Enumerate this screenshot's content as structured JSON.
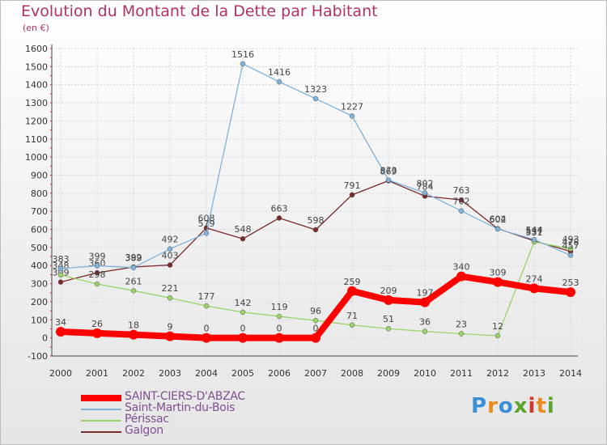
{
  "title": "Evolution du Montant de la Dette par Habitant",
  "subtitle": "(en €)",
  "logo": "Proxiti",
  "chart_data": {
    "type": "line",
    "title": "Evolution du Montant de la Dette par Habitant",
    "ylabel": "(en €)",
    "xlabel": "",
    "x": [
      "2000",
      "2001",
      "2002",
      "2003",
      "2004",
      "2005",
      "2006",
      "2007",
      "2008",
      "2009",
      "2010",
      "2011",
      "2012",
      "2013",
      "2014"
    ],
    "ylim": [
      -100,
      1600
    ],
    "yticks": [
      -100,
      0,
      100,
      200,
      300,
      400,
      500,
      600,
      700,
      800,
      900,
      1000,
      1100,
      1200,
      1300,
      1400,
      1500,
      1600
    ],
    "grid": true,
    "legend_position": "bottom-left",
    "series": [
      {
        "name": "SAINT-CIERS-D'ABZAC",
        "color": "#ff0000",
        "values": [
          34,
          26,
          18,
          9,
          0,
          0,
          0,
          0,
          259,
          209,
          197,
          340,
          309,
          274,
          253
        ]
      },
      {
        "name": "Saint-Martin-du-Bois",
        "color": "#7fb3db",
        "values": [
          383,
          399,
          389,
          492,
          579,
          1516,
          1416,
          1323,
          1227,
          873,
          802,
          702,
          602,
          544,
          457
        ]
      },
      {
        "name": "Périssac",
        "color": "#9ad36a",
        "values": [
          348,
          298,
          261,
          221,
          177,
          142,
          119,
          96,
          71,
          51,
          36,
          23,
          12,
          531,
          493
        ]
      },
      {
        "name": "Galgon",
        "color": "#7a2a2a",
        "values": [
          309,
          360,
          392,
          403,
          608,
          548,
          663,
          598,
          791,
          869,
          784,
          763,
          604,
          537,
          478
        ]
      }
    ]
  }
}
